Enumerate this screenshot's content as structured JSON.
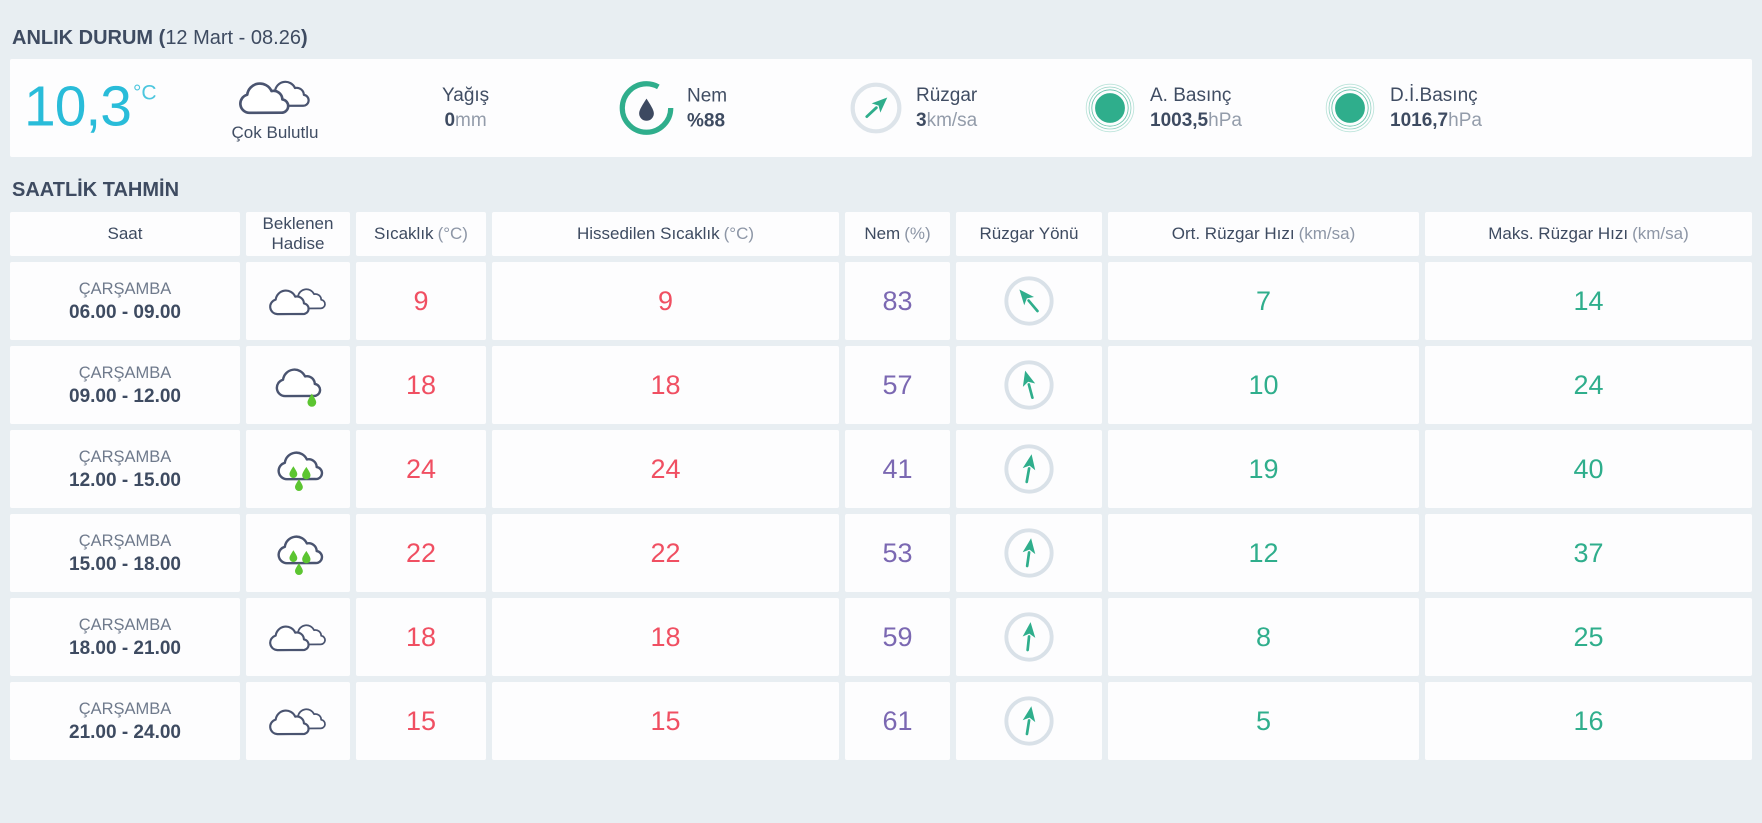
{
  "anlik": {
    "title": "ANLIK DURUM (",
    "datetime": "12 Mart - 08.26",
    "close_paren": ")",
    "temp_value": "10,3",
    "temp_unit": "°C",
    "condition": "Çok Bulutlu",
    "condition_icon": "two-clouds-icon",
    "metrics": [
      {
        "label": "Yağış",
        "value": "0",
        "unit": "mm",
        "icon": null
      },
      {
        "label": "Nem",
        "value": "%88",
        "unit": "",
        "icon": "humidity-gauge-icon"
      },
      {
        "label": "Rüzgar",
        "value": "3",
        "unit": "km/sa",
        "icon": "wind-circle-icon",
        "wind_deg": 47
      },
      {
        "label": "A. Basınç",
        "value": "1003,5",
        "unit": "hPa",
        "icon": "pressure-rings-icon"
      },
      {
        "label": "D.İ.Basınç",
        "value": "1016,7",
        "unit": "hPa",
        "icon": "pressure-rings-icon"
      }
    ]
  },
  "saatlik": {
    "title": "SAATLİK TAHMİN",
    "columns": [
      {
        "label": "Saat",
        "unit": ""
      },
      {
        "label": "Beklenen Hadise",
        "unit": ""
      },
      {
        "label": "Sıcaklık",
        "unit": "(°C)"
      },
      {
        "label": "Hissedilen Sıcaklık",
        "unit": "(°C)"
      },
      {
        "label": "Nem",
        "unit": "(%)"
      },
      {
        "label": "Rüzgar Yönü",
        "unit": ""
      },
      {
        "label": "Ort. Rüzgar Hızı",
        "unit": "(km/sa)"
      },
      {
        "label": "Maks. Rüzgar Hızı",
        "unit": "(km/sa)"
      }
    ],
    "rows": [
      {
        "day": "ÇARŞAMBA",
        "time": "06.00 - 09.00",
        "condition_icon": "two-clouds-icon",
        "temp": "9",
        "feels": "9",
        "humidity": "83",
        "wind_dir_deg": -40,
        "wind_avg": "7",
        "wind_max": "14"
      },
      {
        "day": "ÇARŞAMBA",
        "time": "09.00 - 12.00",
        "condition_icon": "cloud-light-rain-icon",
        "temp": "18",
        "feels": "18",
        "humidity": "57",
        "wind_dir_deg": -15,
        "wind_avg": "10",
        "wind_max": "24"
      },
      {
        "day": "ÇARŞAMBA",
        "time": "12.00 - 15.00",
        "condition_icon": "cloud-rain-icon",
        "temp": "24",
        "feels": "24",
        "humidity": "41",
        "wind_dir_deg": 10,
        "wind_avg": "19",
        "wind_max": "40"
      },
      {
        "day": "ÇARŞAMBA",
        "time": "15.00 - 18.00",
        "condition_icon": "cloud-rain-icon",
        "temp": "22",
        "feels": "22",
        "humidity": "53",
        "wind_dir_deg": 8,
        "wind_avg": "12",
        "wind_max": "37"
      },
      {
        "day": "ÇARŞAMBA",
        "time": "18.00 - 21.00",
        "condition_icon": "two-clouds-icon",
        "temp": "18",
        "feels": "18",
        "humidity": "59",
        "wind_dir_deg": 6,
        "wind_avg": "8",
        "wind_max": "25"
      },
      {
        "day": "ÇARŞAMBA",
        "time": "21.00 - 24.00",
        "condition_icon": "two-clouds-icon",
        "temp": "15",
        "feels": "15",
        "humidity": "61",
        "wind_dir_deg": 9,
        "wind_avg": "5",
        "wind_max": "16"
      }
    ]
  },
  "colors": {
    "page_bg": "#e8eef2",
    "card_bg": "#fdfdfe",
    "text_dark": "#3e4b61",
    "text_gray": "#6f7a8c",
    "unit_gray": "#939caa",
    "current_temp_cyan": "#29bcd9",
    "temperature_red": "#f04f62",
    "humidity_purple": "#7b68b2",
    "wind_teal": "#2fae8c",
    "rain_drop_green": "#5cc531",
    "cloud_outline": "#4a5470",
    "dir_circle_gray": "#d9e1e8"
  }
}
